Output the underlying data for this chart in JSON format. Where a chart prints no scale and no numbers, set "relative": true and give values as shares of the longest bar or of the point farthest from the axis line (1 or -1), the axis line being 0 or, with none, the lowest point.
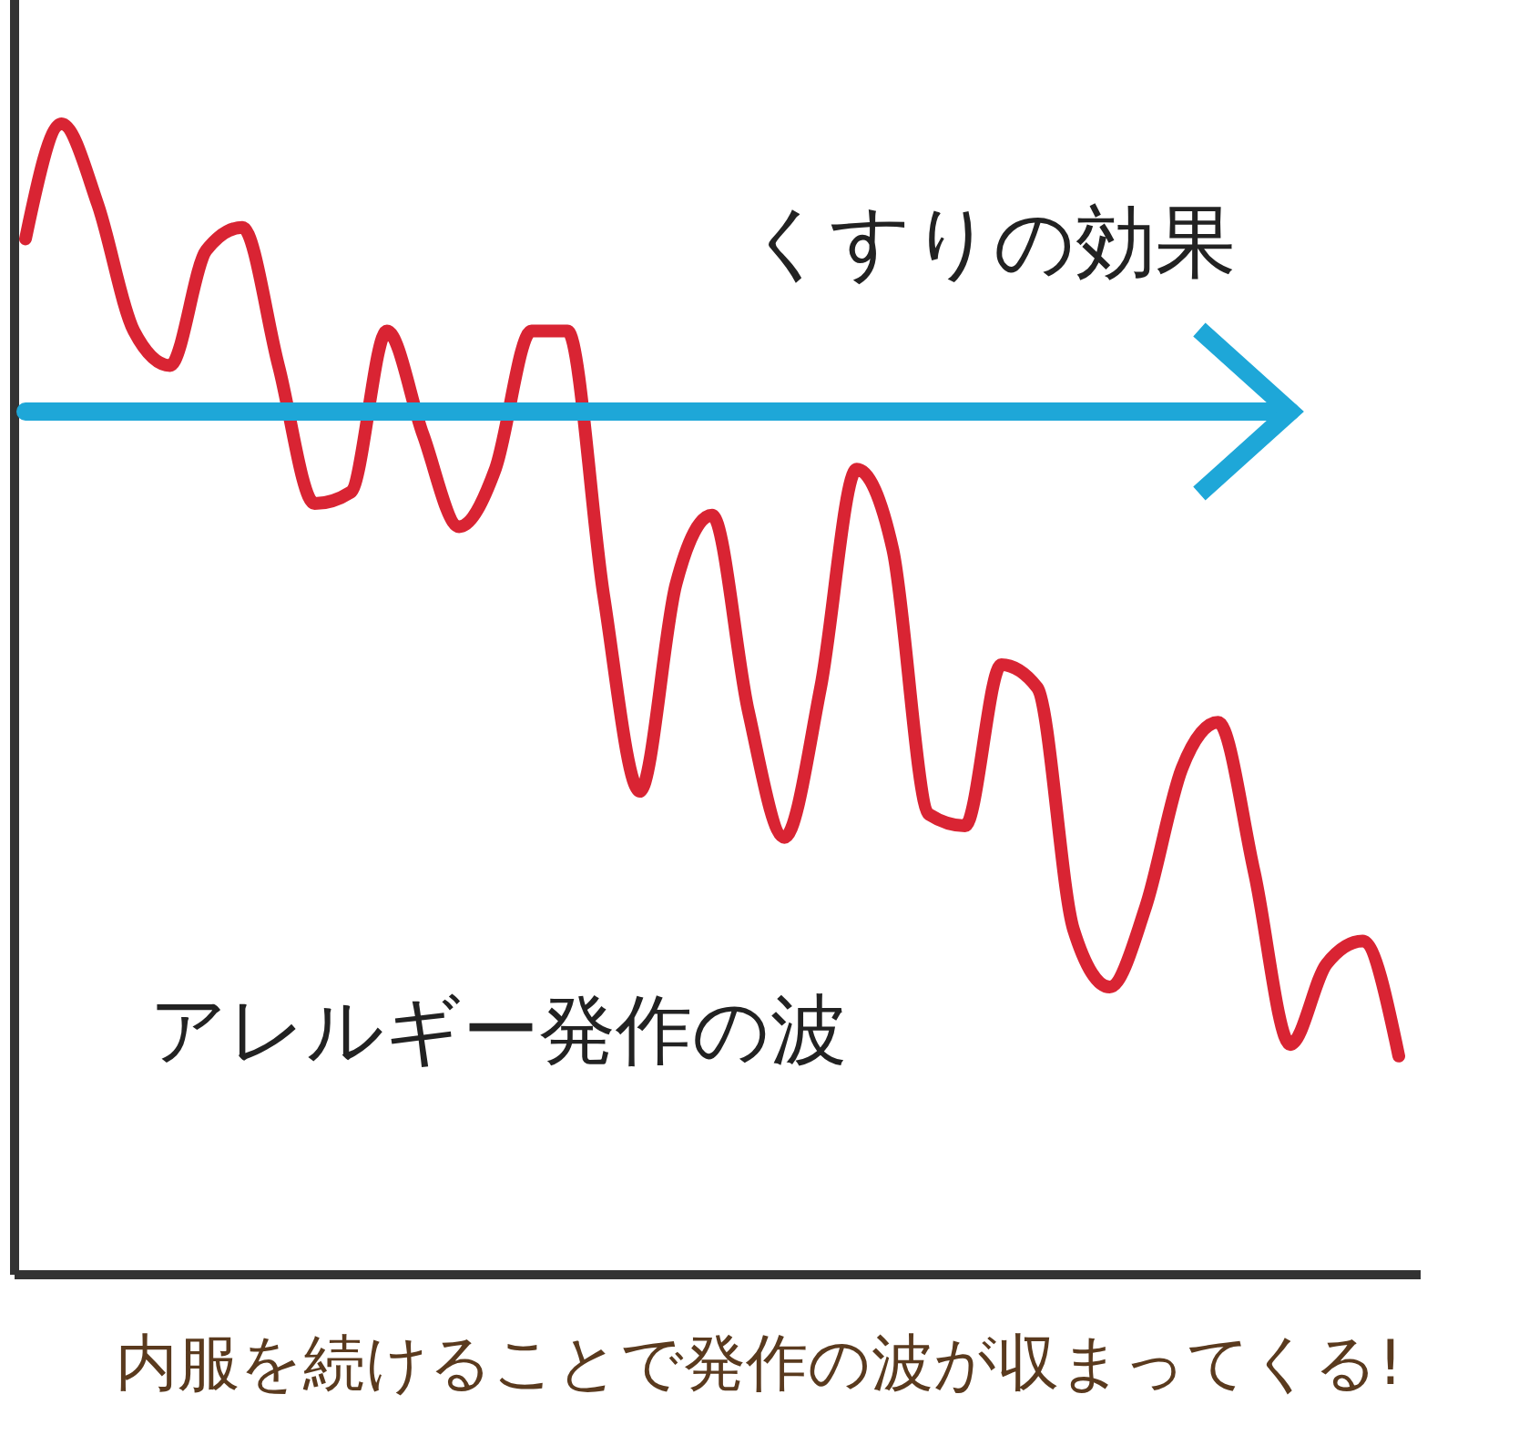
{
  "chart_data": {
    "type": "line",
    "relative": true,
    "categories": [
      null,
      null,
      null,
      null,
      null,
      null,
      null,
      null,
      null,
      null,
      null,
      null,
      null,
      null,
      null,
      null,
      null,
      null,
      null,
      null,
      null,
      null,
      null,
      null,
      null,
      null,
      null,
      null,
      null,
      null,
      null,
      null,
      null,
      null,
      null,
      null,
      null,
      null,
      null
    ],
    "series": [
      {
        "name": "アレルギー発作の波",
        "color": "#d92433",
        "values": [
          0.9,
          1,
          0.93,
          0.82,
          0.79,
          0.89,
          0.91,
          0.79,
          0.67,
          0.68,
          0.82,
          0.73,
          0.65,
          0.7,
          0.82,
          0.82,
          0.59,
          0.42,
          0.6,
          0.66,
          0.49,
          0.38,
          0.51,
          0.7,
          0.63,
          0.4,
          0.39,
          0.53,
          0.51,
          0.3,
          0.25,
          0.32,
          0.44,
          0.48,
          0.35,
          0.2,
          0.27,
          0.29,
          0.19
        ]
      },
      {
        "name": "くすりの効果",
        "color": "#1ea7d8",
        "values": [
          0.75,
          0.75,
          0.75,
          0.75,
          0.75,
          0.75,
          0.75,
          0.75,
          0.75,
          0.75,
          0.75,
          0.75,
          0.75,
          0.75,
          0.75,
          0.75,
          0.75,
          0.75,
          0.75,
          0.75,
          0.75,
          0.75,
          0.75,
          0.75,
          0.75,
          0.75,
          0.75,
          0.75,
          0.75,
          0.75,
          0.75,
          0.75,
          0.75,
          0.75,
          0.75,
          0.75,
          null,
          null,
          null
        ]
      }
    ],
    "annotations": [
      "内服を続けることで発作の波が収まってくる!"
    ]
  }
}
